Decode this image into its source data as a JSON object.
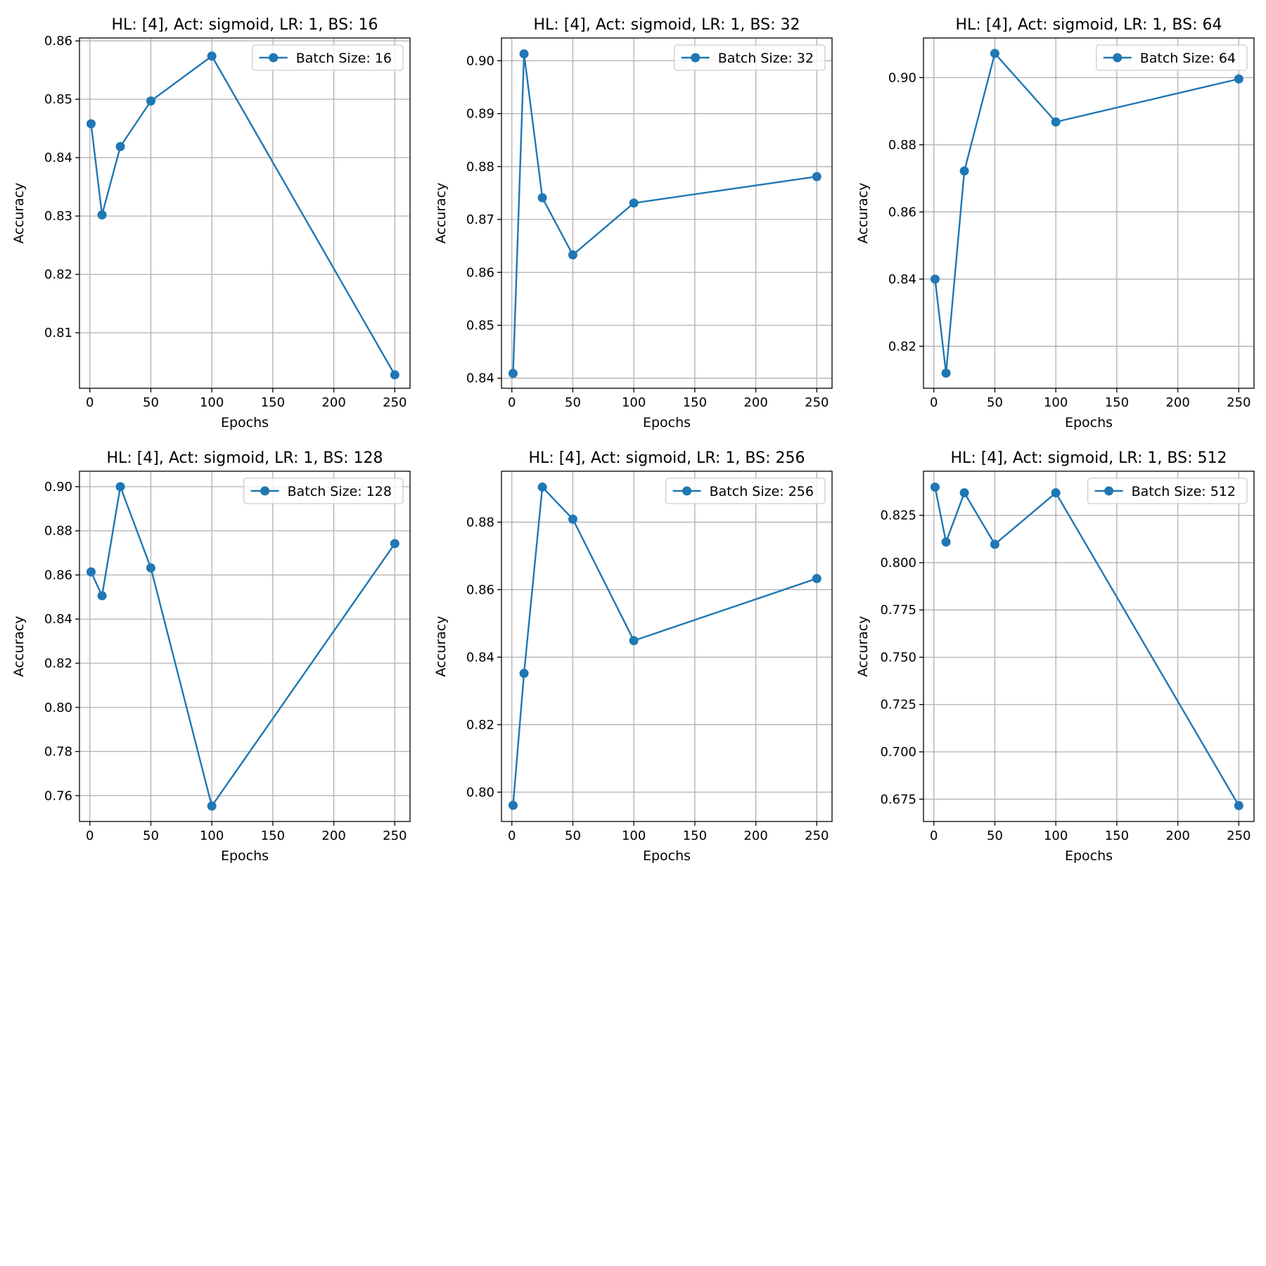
{
  "chart_data": [
    {
      "type": "line",
      "title": "HL: [4], Act: sigmoid, LR: 1, BS: 16",
      "xlabel": "Epochs",
      "ylabel": "Accuracy",
      "xlim": [
        -8.5,
        262.5
      ],
      "ylim": [
        0.8005,
        0.8605
      ],
      "xticks": [
        0,
        50,
        100,
        150,
        200,
        250
      ],
      "yticks": [
        0.81,
        0.82,
        0.83,
        0.84,
        0.85,
        0.86
      ],
      "ytick_decimals": 2,
      "grid": true,
      "legend_position": "upper-right",
      "series": [
        {
          "name": "Batch Size: 16",
          "color": "#1f77b4",
          "x": [
            1,
            10,
            25,
            50,
            100,
            250
          ],
          "y": [
            0.8458,
            0.8302,
            0.8419,
            0.8497,
            0.8574,
            0.8028
          ]
        }
      ]
    },
    {
      "type": "line",
      "title": "HL: [4], Act: sigmoid, LR: 1, BS: 32",
      "xlabel": "Epochs",
      "ylabel": "Accuracy",
      "xlim": [
        -8.5,
        262.5
      ],
      "ylim": [
        0.8381,
        0.9043
      ],
      "xticks": [
        0,
        50,
        100,
        150,
        200,
        250
      ],
      "yticks": [
        0.84,
        0.85,
        0.86,
        0.87,
        0.88,
        0.89,
        0.9
      ],
      "ytick_decimals": 2,
      "grid": true,
      "legend_position": "upper-right",
      "series": [
        {
          "name": "Batch Size: 32",
          "color": "#1f77b4",
          "x": [
            1,
            10,
            25,
            50,
            100,
            250
          ],
          "y": [
            0.8409,
            0.9013,
            0.8741,
            0.8633,
            0.8731,
            0.8781
          ]
        }
      ]
    },
    {
      "type": "line",
      "title": "HL: [4], Act: sigmoid, LR: 1, BS: 64",
      "xlabel": "Epochs",
      "ylabel": "Accuracy",
      "xlim": [
        -8.5,
        262.5
      ],
      "ylim": [
        0.8075,
        0.9118
      ],
      "xticks": [
        0,
        50,
        100,
        150,
        200,
        250
      ],
      "yticks": [
        0.82,
        0.84,
        0.86,
        0.88,
        0.9
      ],
      "ytick_decimals": 2,
      "grid": true,
      "legend_position": "upper-right",
      "series": [
        {
          "name": "Batch Size: 64",
          "color": "#1f77b4",
          "x": [
            1,
            10,
            25,
            50,
            100,
            250
          ],
          "y": [
            0.84,
            0.812,
            0.8722,
            0.9072,
            0.8868,
            0.8996
          ]
        }
      ]
    },
    {
      "type": "line",
      "title": "HL: [4], Act: sigmoid, LR: 1, BS: 128",
      "xlabel": "Epochs",
      "ylabel": "Accuracy",
      "xlim": [
        -8.5,
        262.5
      ],
      "ylim": [
        0.7483,
        0.907
      ],
      "xticks": [
        0,
        50,
        100,
        150,
        200,
        250
      ],
      "yticks": [
        0.76,
        0.78,
        0.8,
        0.82,
        0.84,
        0.86,
        0.88,
        0.9
      ],
      "ytick_decimals": 2,
      "grid": true,
      "legend_position": "upper-right",
      "series": [
        {
          "name": "Batch Size: 128",
          "color": "#1f77b4",
          "x": [
            1,
            10,
            25,
            50,
            100,
            250
          ],
          "y": [
            0.8614,
            0.8506,
            0.9,
            0.8632,
            0.7553,
            0.8742
          ]
        }
      ]
    },
    {
      "type": "line",
      "title": "HL: [4], Act: sigmoid, LR: 1, BS: 256",
      "xlabel": "Epochs",
      "ylabel": "Accuracy",
      "xlim": [
        -8.5,
        262.5
      ],
      "ylim": [
        0.7913,
        0.8951
      ],
      "xticks": [
        0,
        50,
        100,
        150,
        200,
        250
      ],
      "yticks": [
        0.8,
        0.82,
        0.84,
        0.86,
        0.88
      ],
      "ytick_decimals": 2,
      "grid": true,
      "legend_position": "upper-right",
      "series": [
        {
          "name": "Batch Size: 256",
          "color": "#1f77b4",
          "x": [
            1,
            10,
            25,
            50,
            100,
            250
          ],
          "y": [
            0.7961,
            0.8352,
            0.8904,
            0.8809,
            0.8449,
            0.8633
          ]
        }
      ]
    },
    {
      "type": "line",
      "title": "HL: [4], Act: sigmoid, LR: 1, BS: 512",
      "xlabel": "Epochs",
      "ylabel": "Accuracy",
      "xlim": [
        -8.5,
        262.5
      ],
      "ylim": [
        0.6632,
        0.8483
      ],
      "xticks": [
        0,
        50,
        100,
        150,
        200,
        250
      ],
      "yticks": [
        0.675,
        0.7,
        0.725,
        0.75,
        0.775,
        0.8,
        0.825
      ],
      "ytick_decimals": 3,
      "grid": true,
      "legend_position": "upper-right",
      "series": [
        {
          "name": "Batch Size: 512",
          "color": "#1f77b4",
          "x": [
            1,
            10,
            25,
            50,
            100,
            250
          ],
          "y": [
            0.8399,
            0.8109,
            0.8369,
            0.8097,
            0.8369,
            0.6716
          ]
        }
      ]
    }
  ]
}
